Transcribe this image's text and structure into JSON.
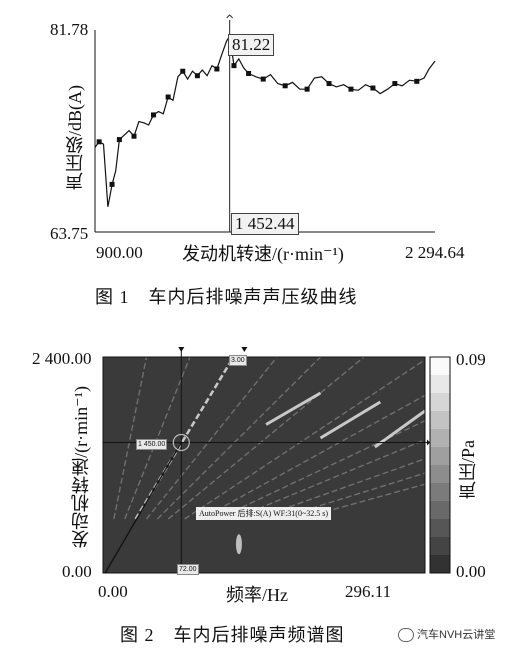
{
  "chart_data": [
    {
      "type": "line",
      "xlabel": "发动机转速/(r·min⁻¹)",
      "ylabel": "声压级/dB(A)",
      "xlim": [
        900.0,
        2294.64
      ],
      "ylim": [
        63.75,
        81.78
      ],
      "x_tick_labels": [
        "900.00",
        "2 294.64"
      ],
      "y_tick_labels": [
        "81.78",
        "63.75"
      ],
      "cursor": {
        "x_label": "1 452.44",
        "y_label": "81.22",
        "x": 1452.44,
        "y": 81.22
      },
      "series": [
        {
          "x": [
            900,
            917,
            935,
            953,
            970,
            985,
            1000,
            1020,
            1040,
            1060,
            1080,
            1100,
            1120,
            1140,
            1160,
            1180,
            1200,
            1220,
            1240,
            1260,
            1280,
            1300,
            1320,
            1340,
            1360,
            1380,
            1400,
            1420,
            1440,
            1452.44,
            1470,
            1490,
            1510,
            1530,
            1560,
            1590,
            1620,
            1650,
            1680,
            1710,
            1740,
            1770,
            1800,
            1830,
            1860,
            1890,
            1920,
            1950,
            1980,
            2010,
            2040,
            2070,
            2100,
            2130,
            2160,
            2190,
            2220,
            2250,
            2270,
            2294.64
          ],
          "y": [
            71.3,
            71.8,
            71.6,
            66.0,
            68.0,
            69.2,
            72.0,
            72.4,
            72.8,
            72.3,
            73.6,
            73.5,
            73.3,
            74.2,
            74.5,
            74.3,
            75.8,
            75.5,
            77.6,
            78.1,
            77.4,
            78.1,
            77.7,
            78.2,
            77.7,
            78.6,
            78.3,
            79.6,
            80.8,
            81.22,
            78.6,
            79.2,
            78.4,
            77.9,
            77.6,
            77.4,
            77.8,
            77.0,
            76.8,
            77.1,
            76.5,
            76.5,
            77.5,
            77.6,
            77.0,
            76.7,
            76.9,
            76.5,
            76.4,
            76.9,
            76.6,
            76.1,
            76.5,
            77.0,
            76.8,
            77.3,
            77.2,
            77.5,
            78.3,
            79.0
          ]
        }
      ],
      "marker_indices": [
        1,
        4,
        6,
        9,
        13,
        16,
        19,
        22,
        26,
        30,
        33,
        35,
        38,
        41,
        44,
        47,
        50,
        53,
        56
      ]
    },
    {
      "type": "heatmap",
      "xlabel": "频率/Hz",
      "ylabel": "发动机转速/(r·min⁻¹)",
      "colorbar_label": "声压/Pa",
      "xlim": [
        0.0,
        296.11
      ],
      "ylim": [
        0.0,
        2400.0
      ],
      "x_tick_labels": [
        "0.00",
        "296.11"
      ],
      "y_tick_labels": [
        "2 400.00",
        "0.00"
      ],
      "colorbar_range": [
        0.0,
        0.09
      ],
      "colorbar_tick_labels": [
        "0.09",
        "0.00"
      ],
      "cursor": {
        "rpm_label": "1 450.00",
        "freq_label": "72.00",
        "order_label": "3.00"
      },
      "annotation": "AutoPower 后排:S(A) WF:31(0~32.5 s)"
    }
  ],
  "captions": {
    "figure1": "图 1　车内后排噪声声压级曲线",
    "figure2": "图 2　车内后排噪声频谱图"
  },
  "watermark": "汽车NVH云讲堂",
  "colors": {
    "plot_background": "#3a3a3a",
    "line": "#111111",
    "cursor": "#222222"
  }
}
